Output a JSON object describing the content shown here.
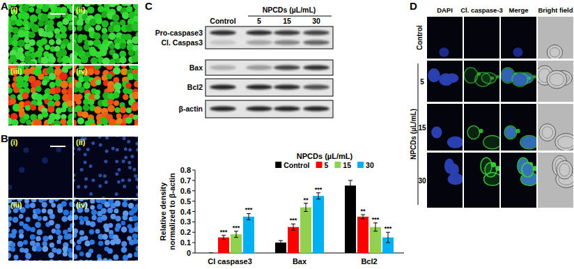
{
  "panels": {
    "A": {
      "label": "A",
      "images": [
        "(i)",
        "(ii)",
        "(iii)",
        "(iv)"
      ]
    },
    "B": {
      "label": "B",
      "images": [
        "(i)",
        "(ii)",
        "(iii)",
        "(iv)"
      ]
    },
    "C": {
      "label": "C",
      "blot": {
        "treatment_label": "NPCDs (µL/mL)",
        "lanes": [
          "Control",
          "5",
          "15",
          "30"
        ],
        "rows": [
          "Pro-caspase3",
          "Cl. Caspas3",
          "Bax",
          "Bcl2",
          "β-actin"
        ]
      }
    },
    "D": {
      "label": "D",
      "columns": [
        "DAPI",
        "Cl. caspase-3",
        "Merge",
        "Bright field"
      ],
      "group_label": "NPCDs (µL/mL)",
      "rows": [
        "Control",
        "5",
        "15",
        "30"
      ]
    }
  },
  "chart_data": {
    "type": "bar",
    "ylabel": [
      "Relative density",
      "normalized to β-actin"
    ],
    "legend_title": "NPCDs (µL/mL)",
    "legend": "top",
    "categories": [
      "Cl caspase3",
      "Bax",
      "Bcl2"
    ],
    "series": [
      {
        "name": "Control",
        "color": "#000000",
        "values": [
          0,
          0.1,
          0.65
        ],
        "errors": [
          0,
          0.02,
          0.05
        ],
        "significance": [
          null,
          null,
          null
        ]
      },
      {
        "name": "5",
        "color": "#ff0000",
        "values": [
          0.15,
          0.25,
          0.35
        ],
        "errors": [
          0.02,
          0.03,
          0.02
        ],
        "significance": [
          "***",
          "***",
          "**"
        ]
      },
      {
        "name": "15",
        "color": "#92d050",
        "values": [
          0.18,
          0.44,
          0.25
        ],
        "errors": [
          0.03,
          0.04,
          0.04
        ],
        "significance": [
          "***",
          "**",
          "***"
        ]
      },
      {
        "name": "30",
        "color": "#00b0f0",
        "values": [
          0.35,
          0.55,
          0.15
        ],
        "errors": [
          0.03,
          0.03,
          0.05
        ],
        "significance": [
          "***",
          "***",
          "***"
        ]
      }
    ],
    "ylim": [
      0,
      0.8
    ],
    "yticks": [
      0,
      0.1,
      0.2,
      0.3,
      0.4,
      0.5,
      0.6,
      0.7,
      0.8
    ],
    "grid": false
  }
}
